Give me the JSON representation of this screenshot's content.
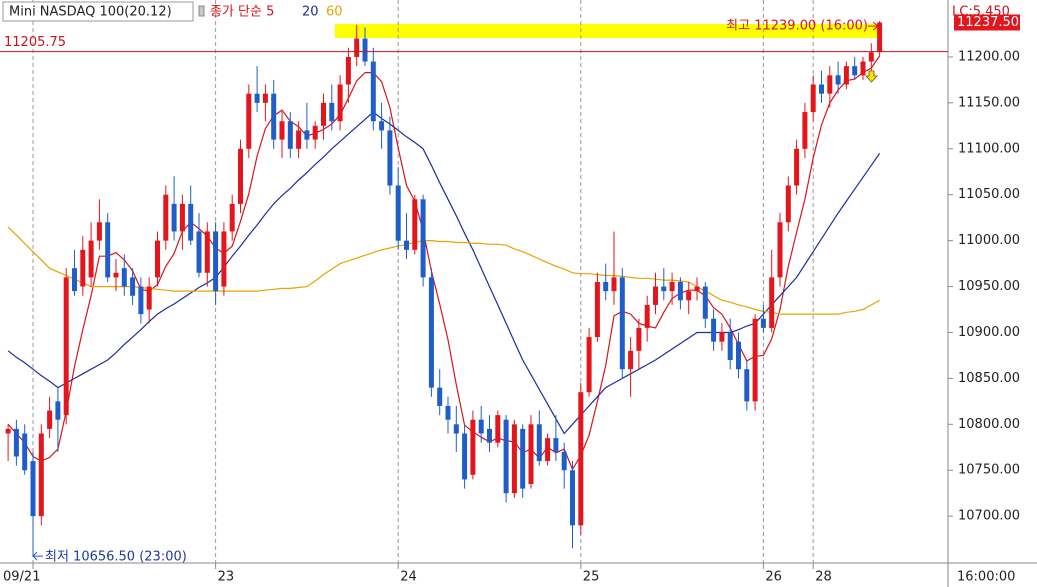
{
  "chart_data": {
    "type": "candlestick",
    "title": "Mini NASDAQ 100(20.12)",
    "info": "LC:5.450",
    "x_time_label": "16:00:00",
    "up_color": "#e3161e",
    "down_color": "#1f5dc9",
    "categories": [
      null,
      null,
      null,
      "09/21",
      null,
      null,
      null,
      null,
      null,
      null,
      null,
      null,
      null,
      null,
      null,
      null,
      null,
      null,
      null,
      null,
      null,
      null,
      null,
      null,
      null,
      "23",
      null,
      null,
      null,
      null,
      null,
      null,
      null,
      null,
      null,
      null,
      null,
      null,
      null,
      null,
      null,
      null,
      null,
      null,
      null,
      null,
      null,
      "24",
      null,
      null,
      null,
      null,
      null,
      null,
      null,
      null,
      null,
      null,
      null,
      null,
      null,
      null,
      null,
      null,
      null,
      null,
      null,
      null,
      null,
      "25",
      null,
      null,
      null,
      null,
      null,
      null,
      null,
      null,
      null,
      null,
      null,
      null,
      null,
      null,
      null,
      null,
      null,
      null,
      null,
      null,
      null,
      "26",
      null,
      null,
      null,
      null,
      null,
      "28",
      null,
      null,
      null,
      null,
      null,
      null,
      null,
      null
    ],
    "open": [
      10790,
      10795,
      10790,
      10760,
      10700,
      10795,
      10825,
      10810,
      10970,
      10950,
      10960,
      11000,
      11020,
      10960,
      10970,
      10960,
      10950,
      10925,
      10960,
      11000,
      11040,
      11010,
      11040,
      11010,
      10965,
      11010,
      10950,
      11010,
      11040,
      11100,
      11160,
      11150,
      11160,
      11110,
      11130,
      11100,
      11120,
      11110,
      11125,
      11150,
      11130,
      11170,
      11200,
      11220,
      11195,
      11130,
      11120,
      11060,
      11000,
      10990,
      11045,
      10960,
      10840,
      10820,
      10800,
      10790,
      10745,
      10805,
      10795,
      10780,
      10805,
      10725,
      10795,
      10735,
      10800,
      10760,
      10785,
      10770,
      10750,
      10690,
      10835,
      10895,
      10955,
      10945,
      10960,
      10860,
      10880,
      10905,
      10930,
      10950,
      10945,
      10955,
      10935,
      10945,
      10950,
      10915,
      10890,
      10900,
      10890,
      10860,
      10825,
      10915,
      10905,
      10960,
      11020,
      11060,
      11100,
      11140,
      11170,
      11160,
      11180,
      11170,
      11190,
      11180,
      11195,
      11205.75
    ],
    "high": [
      10800,
      10805,
      10800,
      10770,
      10800,
      10830,
      10840,
      10970,
      10990,
      11005,
      11020,
      11045,
      11030,
      10980,
      10985,
      10970,
      10960,
      10960,
      11010,
      11060,
      11070,
      11050,
      11060,
      11030,
      11020,
      11020,
      11020,
      11050,
      11110,
      11170,
      11190,
      11170,
      11175,
      11140,
      11140,
      11130,
      11150,
      11130,
      11160,
      11170,
      11180,
      11210,
      11235,
      11232,
      11210,
      11150,
      11135,
      11080,
      11030,
      11050,
      11050,
      10970,
      10860,
      10830,
      10820,
      10800,
      10815,
      10820,
      10810,
      10815,
      10810,
      10805,
      10800,
      10810,
      10815,
      10790,
      10810,
      10780,
      10760,
      10845,
      10905,
      10965,
      10975,
      11010,
      10970,
      10895,
      10915,
      10940,
      10965,
      10970,
      10965,
      10960,
      10955,
      10960,
      10955,
      10925,
      10910,
      10915,
      10900,
      10870,
      10920,
      10930,
      10990,
      11030,
      11070,
      11110,
      11150,
      11180,
      11185,
      11190,
      11195,
      11195,
      11200,
      11200,
      11215,
      11239
    ],
    "low": [
      10760,
      10755,
      10745,
      10656.5,
      10690,
      10785,
      10770,
      10800,
      10940,
      10940,
      10950,
      10990,
      10955,
      10945,
      10940,
      10930,
      10910,
      10910,
      10950,
      10990,
      11000,
      10990,
      10995,
      10960,
      10950,
      10930,
      10940,
      11000,
      11030,
      11090,
      11140,
      11130,
      11100,
      11090,
      11090,
      11090,
      11100,
      11100,
      11110,
      11120,
      11120,
      11150,
      11190,
      11190,
      11120,
      11100,
      11050,
      10990,
      10980,
      10985,
      10950,
      10830,
      10810,
      10790,
      10770,
      10730,
      10740,
      10780,
      10770,
      10775,
      10715,
      10720,
      10720,
      10730,
      10755,
      10755,
      10760,
      10730,
      10665,
      10680,
      10830,
      10890,
      10935,
      10930,
      10850,
      10830,
      10860,
      10890,
      10920,
      10935,
      10930,
      10925,
      10920,
      10935,
      10905,
      10880,
      10880,
      10860,
      10850,
      10815,
      10815,
      10900,
      10900,
      10950,
      11010,
      11050,
      11090,
      11130,
      11150,
      11145,
      11160,
      11165,
      11175,
      11175,
      11185,
      11200
    ],
    "close": [
      10795,
      10765,
      10750,
      10700,
      10790,
      10815,
      10805,
      10960,
      10945,
      10990,
      11000,
      11020,
      10960,
      10965,
      10950,
      10940,
      10920,
      10950,
      11000,
      11050,
      11010,
      11040,
      11000,
      10965,
      11010,
      10945,
      11010,
      11040,
      11100,
      11160,
      11150,
      11160,
      11110,
      11130,
      11100,
      11120,
      11110,
      11125,
      11150,
      11130,
      11170,
      11200,
      11220,
      11195,
      11130,
      11120,
      11060,
      11000,
      10990,
      11045,
      10960,
      10840,
      10820,
      10805,
      10790,
      10740,
      10805,
      10790,
      10780,
      10810,
      10725,
      10800,
      10730,
      10800,
      10760,
      10785,
      10770,
      10750,
      10690,
      10835,
      10895,
      10955,
      10945,
      10960,
      10860,
      10880,
      10905,
      10930,
      10950,
      10945,
      10955,
      10935,
      10945,
      10950,
      10915,
      10890,
      10900,
      10870,
      10860,
      10825,
      10915,
      10905,
      10960,
      11020,
      11060,
      11100,
      11140,
      11170,
      11160,
      11180,
      11170,
      11190,
      11180,
      11195,
      11205,
      11237.5
    ],
    "series": [
      {
        "name": "종가 단순 5",
        "color": "#d9141b",
        "values": [
          10800,
          10790,
          10780,
          10765,
          10760,
          10764,
          10773,
          10814,
          10863,
          10903,
          10940,
          10983,
          10983,
          10987,
          10979,
          10967,
          10947,
          10945,
          10952,
          10972,
          10986,
          11010,
          11020,
          11013,
          11005,
          10992,
          10986,
          10994,
          11021,
          11051,
          11092,
          11122,
          11136,
          11142,
          11130,
          11124,
          11114,
          11117,
          11121,
          11127,
          11137,
          11155,
          11174,
          11183,
          11183,
          11173,
          11145,
          11101,
          11060,
          11043,
          11011,
          10967,
          10931,
          10892,
          10843,
          10799,
          10792,
          10786,
          10781,
          10785,
          10782,
          10781,
          10769,
          10773,
          10763,
          10775,
          10769,
          10773,
          10751,
          10766,
          10788,
          10825,
          10864,
          10918,
          10923,
          10920,
          10910,
          10907,
          10905,
          10922,
          10937,
          10943,
          10946,
          10946,
          10940,
          10927,
          10920,
          10905,
          10887,
          10869,
          10874,
          10875,
          10893,
          10925,
          10972,
          11009,
          11045,
          11090,
          11126,
          11150,
          11164,
          11174,
          11176,
          11183,
          11188,
          11201
        ]
      },
      {
        "name": "20",
        "color": "#1a2fa0",
        "values": [
          10880,
          10873,
          10867,
          10860,
          10853,
          10847,
          10840,
          10845,
          10850,
          10855,
          10860,
          10865,
          10870,
          10878,
          10887,
          10895,
          10903,
          10912,
          10920,
          10926,
          10931,
          10937,
          10943,
          10949,
          10954,
          10960,
          10971,
          10983,
          10994,
          11006,
          11017,
          11029,
          11040,
          11049,
          11057,
          11066,
          11074,
          11083,
          11091,
          11100,
          11108,
          11116,
          11124,
          11132,
          11140,
          11133,
          11127,
          11120,
          11113,
          11107,
          11100,
          11082,
          11063,
          11045,
          11027,
          11008,
          10990,
          10970,
          10950,
          10930,
          10910,
          10890,
          10870,
          10854,
          10838,
          10822,
          10806,
          10790,
          10800,
          10810,
          10820,
          10830,
          10840,
          10845,
          10850,
          10855,
          10860,
          10865,
          10870,
          10876,
          10882,
          10888,
          10894,
          10900,
          10900,
          10900,
          10900,
          10900,
          10903,
          10907,
          10910,
          10920,
          10930,
          10940,
          10950,
          10960,
          10974,
          10988,
          11002,
          11016,
          11030,
          11043,
          11056,
          11069,
          11082,
          11095
        ]
      },
      {
        "name": "60",
        "color": "#e8a400",
        "values": [
          11015,
          11006,
          10997,
          10988,
          10979,
          10970,
          10966,
          10962,
          10958,
          10954,
          10950,
          10950,
          10950,
          10950,
          10950,
          10950,
          10949,
          10948,
          10947,
          10946,
          10945,
          10945,
          10945,
          10945,
          10945,
          10945,
          10945,
          10945,
          10945,
          10945,
          10945,
          10946,
          10947,
          10948,
          10948,
          10949,
          10950,
          10956,
          10963,
          10969,
          10975,
          10978,
          10981,
          10984,
          10987,
          10990,
          10992,
          10994,
          10996,
          10998,
          11000,
          11000,
          10999,
          10999,
          10998,
          10998,
          10997,
          10997,
          10996,
          10996,
          10995,
          10991,
          10988,
          10984,
          10980,
          10976,
          10972,
          10969,
          10965,
          10964,
          10964,
          10963,
          10962,
          10962,
          10961,
          10960,
          10959,
          10959,
          10958,
          10957,
          10957,
          10956,
          10955,
          10950,
          10945,
          10940,
          10935,
          10933,
          10930,
          10928,
          10925,
          10923,
          10922,
          10920,
          10920,
          10920,
          10920,
          10920,
          10920,
          10920,
          10920,
          10922,
          10923,
          10925,
          10930,
          10935
        ]
      }
    ],
    "reference_line": {
      "value": 11205.75,
      "label": "11205.75",
      "color": "#c8141b"
    },
    "last_price": {
      "value": 11237.5,
      "label": "11237.50",
      "color": "#e3161e"
    },
    "annotations": {
      "high": "최고 11239.00 (16:00)",
      "low": "최저 10656.50 (23:00)"
    },
    "ylim": [
      10649,
      11262
    ],
    "yticks": [
      {
        "value": 10700,
        "label": "10700.00"
      },
      {
        "value": 10750,
        "label": "10750.00"
      },
      {
        "value": 10800,
        "label": "10800.00"
      },
      {
        "value": 10850,
        "label": "10850.00"
      },
      {
        "value": 10900,
        "label": "10900.00"
      },
      {
        "value": 10950,
        "label": "10950.00"
      },
      {
        "value": 11000,
        "label": "11000.00"
      },
      {
        "value": 11050,
        "label": "11050.00"
      },
      {
        "value": 11100,
        "label": "11100.00"
      },
      {
        "value": 11150,
        "label": "11150.00"
      },
      {
        "value": 11200,
        "label": "11200.00"
      }
    ]
  }
}
